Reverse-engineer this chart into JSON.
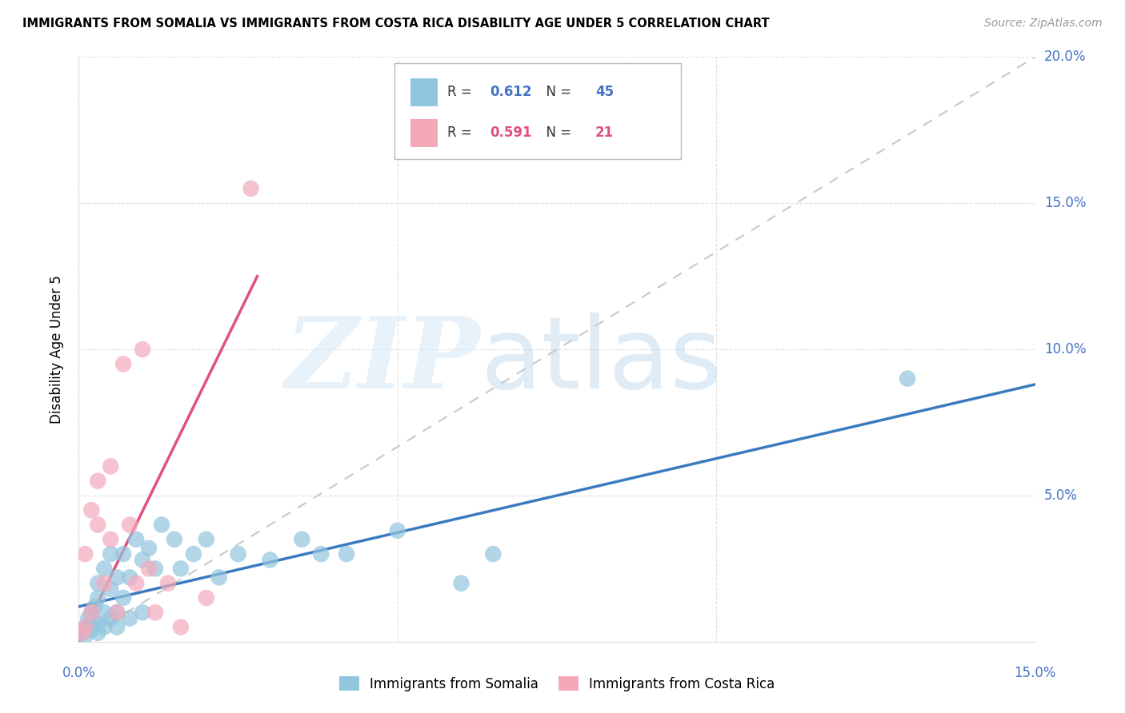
{
  "title": "IMMIGRANTS FROM SOMALIA VS IMMIGRANTS FROM COSTA RICA DISABILITY AGE UNDER 5 CORRELATION CHART",
  "source": "Source: ZipAtlas.com",
  "ylabel": "Disability Age Under 5",
  "somalia_color": "#92c5de",
  "costarica_color": "#f4a9bb",
  "somalia_line_color": "#3a7abf",
  "costarica_line_color": "#e05080",
  "diagonal_color": "#c8c8c8",
  "xlim": [
    0.0,
    0.15
  ],
  "ylim": [
    0.0,
    0.2
  ],
  "somalia_x": [
    0.0005,
    0.001,
    0.001,
    0.0015,
    0.002,
    0.002,
    0.002,
    0.0025,
    0.003,
    0.003,
    0.003,
    0.003,
    0.004,
    0.004,
    0.004,
    0.005,
    0.005,
    0.005,
    0.006,
    0.006,
    0.006,
    0.007,
    0.007,
    0.008,
    0.008,
    0.009,
    0.01,
    0.01,
    0.011,
    0.012,
    0.013,
    0.015,
    0.016,
    0.018,
    0.02,
    0.022,
    0.025,
    0.03,
    0.035,
    0.038,
    0.042,
    0.05,
    0.06,
    0.065,
    0.13
  ],
  "somalia_y": [
    0.003,
    0.005,
    0.002,
    0.008,
    0.01,
    0.004,
    0.007,
    0.012,
    0.015,
    0.006,
    0.003,
    0.02,
    0.01,
    0.005,
    0.025,
    0.018,
    0.008,
    0.03,
    0.022,
    0.01,
    0.005,
    0.03,
    0.015,
    0.022,
    0.008,
    0.035,
    0.028,
    0.01,
    0.032,
    0.025,
    0.04,
    0.035,
    0.025,
    0.03,
    0.035,
    0.022,
    0.03,
    0.028,
    0.035,
    0.03,
    0.03,
    0.038,
    0.02,
    0.03,
    0.09
  ],
  "costarica_x": [
    0.0005,
    0.001,
    0.001,
    0.002,
    0.002,
    0.003,
    0.003,
    0.004,
    0.005,
    0.005,
    0.006,
    0.007,
    0.008,
    0.009,
    0.01,
    0.011,
    0.012,
    0.014,
    0.016,
    0.02,
    0.027
  ],
  "costarica_y": [
    0.003,
    0.005,
    0.03,
    0.01,
    0.045,
    0.04,
    0.055,
    0.02,
    0.035,
    0.06,
    0.01,
    0.095,
    0.04,
    0.02,
    0.1,
    0.025,
    0.01,
    0.02,
    0.005,
    0.015,
    0.155
  ],
  "somalia_line_x0": 0.0,
  "somalia_line_y0": 0.012,
  "somalia_line_x1": 0.15,
  "somalia_line_y1": 0.088,
  "costarica_line_x0": 0.0,
  "costarica_line_y0": 0.0,
  "costarica_line_x1": 0.028,
  "costarica_line_y1": 0.125,
  "R_somalia": "0.612",
  "N_somalia": "45",
  "R_costarica": "0.591",
  "N_costarica": "21"
}
